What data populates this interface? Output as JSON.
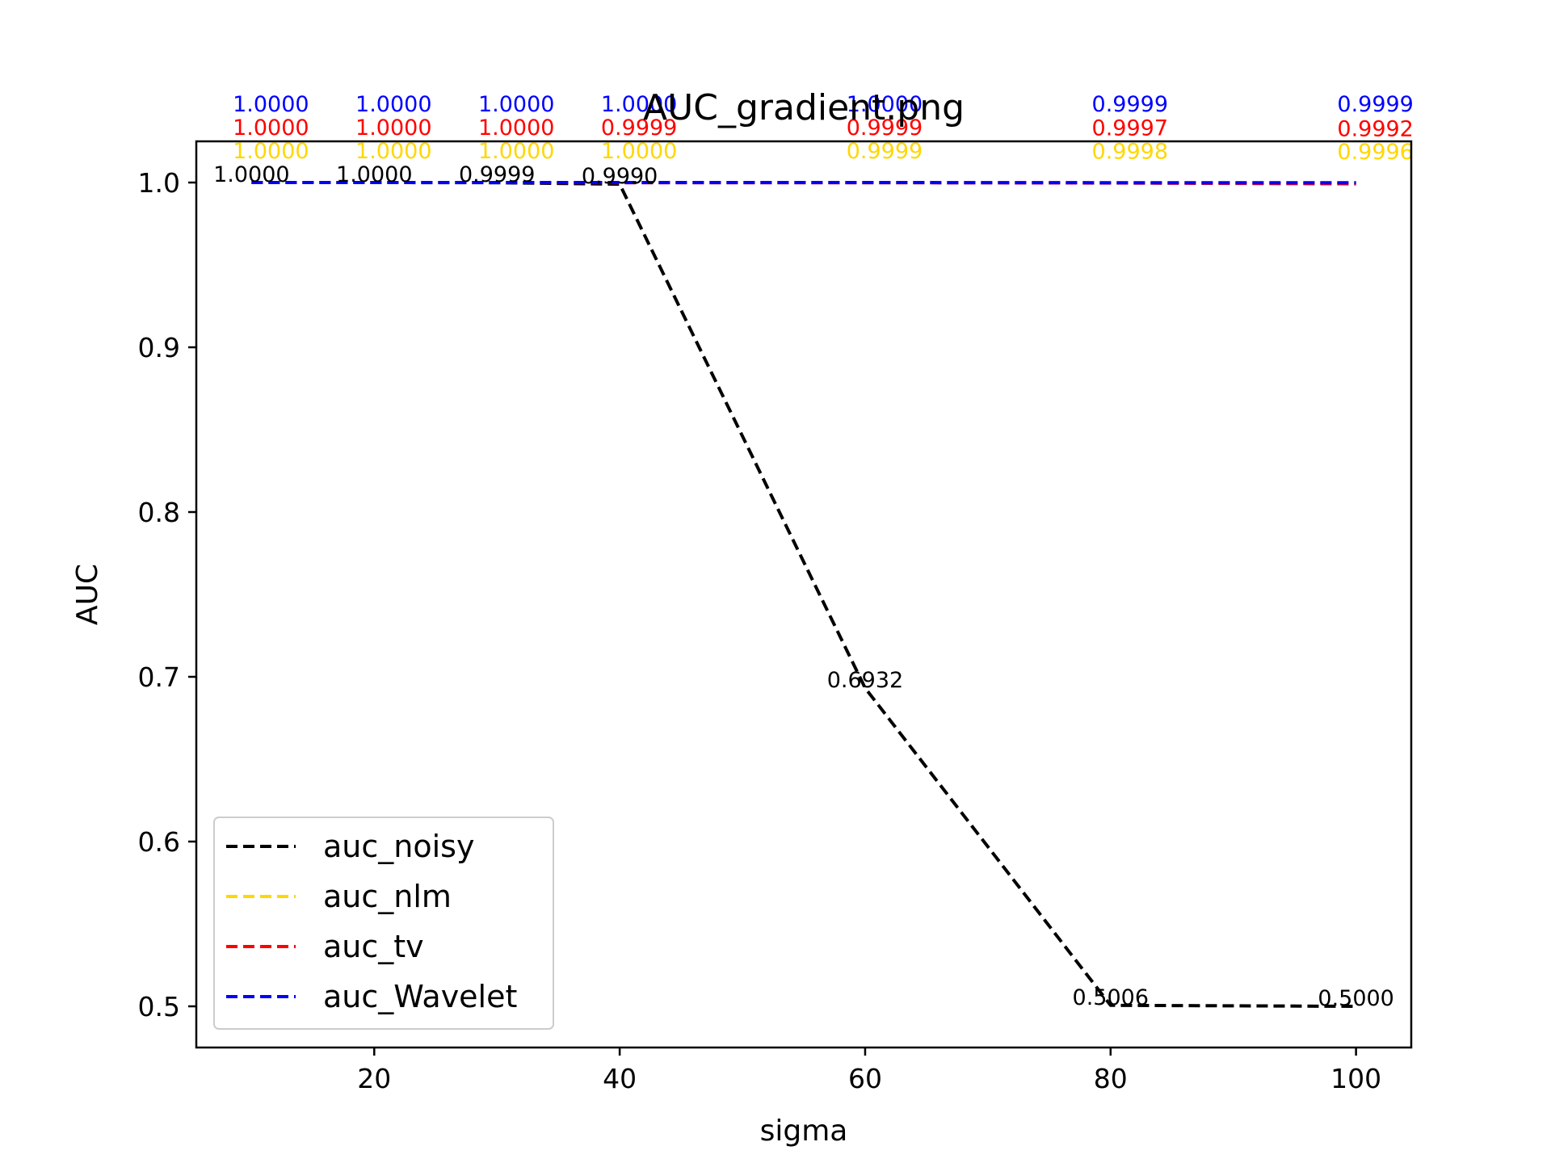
{
  "chart_data": {
    "type": "line",
    "title": "AUC_gradient.png",
    "xlabel": "sigma",
    "ylabel": "AUC",
    "x": [
      10,
      20,
      30,
      40,
      60,
      80,
      100
    ],
    "xlim": [
      5.5,
      104.5
    ],
    "ylim": [
      0.475,
      1.025
    ],
    "xticks": [
      20,
      40,
      60,
      80,
      100
    ],
    "yticks": [
      0.5,
      0.6,
      0.7,
      0.8,
      0.9,
      1.0
    ],
    "xtick_labels": [
      "20",
      "40",
      "60",
      "80",
      "100"
    ],
    "ytick_labels": [
      "0.5",
      "0.6",
      "0.7",
      "0.8",
      "0.9",
      "1.0"
    ],
    "grid": false,
    "legend_position": "lower-left",
    "series": [
      {
        "name": "auc_noisy",
        "color": "#000000",
        "style": "dashed",
        "values": [
          1.0,
          1.0,
          0.9999,
          0.999,
          0.6932,
          0.5006,
          0.5
        ],
        "labels": [
          "1.0000",
          "1.0000",
          "0.9999",
          "0.9990",
          "0.6932",
          "0.5006",
          "0.5000"
        ]
      },
      {
        "name": "auc_nlm",
        "color": "#ffd700",
        "style": "dashed",
        "values": [
          1.0,
          1.0,
          1.0,
          1.0,
          0.9999,
          0.9998,
          0.9996
        ],
        "labels": [
          "1.0000",
          "1.0000",
          "1.0000",
          "1.0000",
          "0.9999",
          "0.9998",
          "0.9996"
        ]
      },
      {
        "name": "auc_tv",
        "color": "#ff0000",
        "style": "dashed",
        "values": [
          1.0,
          1.0,
          1.0,
          0.9999,
          0.9999,
          0.9997,
          0.9992
        ],
        "labels": [
          "1.0000",
          "1.0000",
          "1.0000",
          "0.9999",
          "0.9999",
          "0.9997",
          "0.9992"
        ]
      },
      {
        "name": "auc_Wavelet",
        "color": "#0000ff",
        "style": "dashed",
        "values": [
          1.0,
          1.0,
          1.0,
          1.0,
          1.0,
          0.9999,
          0.9999
        ],
        "labels": [
          "1.0000",
          "1.0000",
          "1.0000",
          "1.0000",
          "1.0000",
          "0.9999",
          "0.9999"
        ]
      }
    ]
  }
}
